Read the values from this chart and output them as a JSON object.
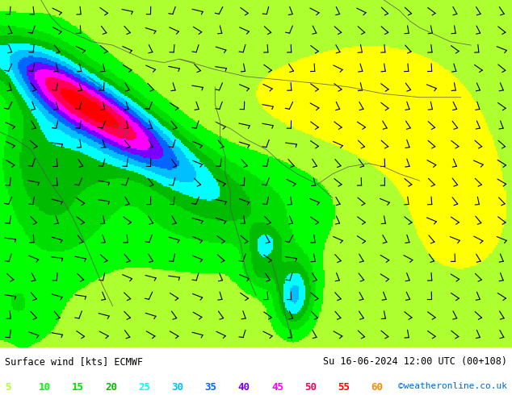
{
  "title_left": "Surface wind [kts] ECMWF",
  "title_right": "Su 16-06-2024 12:00 UTC (00+108)",
  "watermark": "©weatheronline.co.uk",
  "legend_values": [
    5,
    10,
    15,
    20,
    25,
    30,
    35,
    40,
    45,
    50,
    55,
    60
  ],
  "legend_colors": [
    "#adff2f",
    "#00ff00",
    "#00dd00",
    "#00bb00",
    "#00ffff",
    "#00bfff",
    "#0066ff",
    "#7700ff",
    "#ff00ff",
    "#ff0055",
    "#ff0000",
    "#ff8800"
  ],
  "colormap_colors": [
    "#ffff00",
    "#adff2f",
    "#00ff00",
    "#00dd00",
    "#00bb00",
    "#00ffff",
    "#00bfff",
    "#0066ff",
    "#7700ff",
    "#ff00ff",
    "#ff0055",
    "#ff0000",
    "#ff8800"
  ],
  "colormap_bounds": [
    0,
    5,
    10,
    15,
    20,
    25,
    30,
    35,
    40,
    45,
    50,
    55,
    60,
    70
  ],
  "bg_color": "#ffffff",
  "fig_width": 6.34,
  "fig_height": 4.9,
  "dpi": 100
}
